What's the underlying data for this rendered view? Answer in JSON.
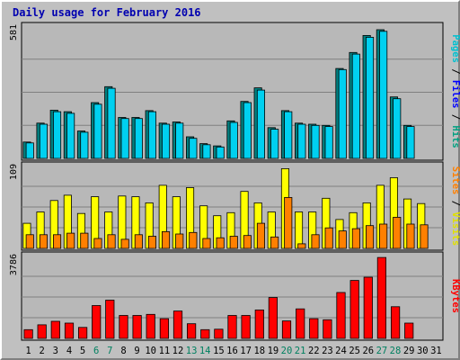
{
  "chart_data": {
    "type": "bar",
    "title": "Daily usage for February 2016",
    "categories": [
      "1",
      "2",
      "3",
      "4",
      "5",
      "6",
      "7",
      "8",
      "9",
      "10",
      "11",
      "12",
      "13",
      "14",
      "15",
      "16",
      "17",
      "18",
      "19",
      "20",
      "21",
      "22",
      "23",
      "24",
      "25",
      "26",
      "27",
      "28",
      "29",
      "30",
      "31"
    ],
    "weekend_days": [
      "6",
      "7",
      "13",
      "14",
      "20",
      "21",
      "27",
      "28"
    ],
    "panels": [
      {
        "id": "pages-files-hits",
        "max_label": "581",
        "ymax": 581,
        "side_labels": [
          {
            "text": "Pages",
            "color": "#00c0d0"
          },
          {
            "text": " / ",
            "color": "#000000"
          },
          {
            "text": "Files",
            "color": "#0000ff"
          },
          {
            "text": " / ",
            "color": "#000000"
          },
          {
            "text": "Hits",
            "color": "#00a080"
          }
        ],
        "series": [
          {
            "name": "Hits",
            "color": "#008080",
            "values": [
              72,
              155,
              212,
              205,
              120,
              245,
              315,
              180,
              180,
              210,
              155,
              160,
              95,
              65,
              55,
              165,
              250,
              310,
              135,
              210,
              155,
              150,
              145,
              395,
              465,
              540,
              565,
              270,
              145,
              null,
              null
            ]
          },
          {
            "name": "Pages",
            "color": "#00d0f0",
            "values": [
              68,
              150,
              205,
              198,
              115,
              238,
              308,
              175,
              175,
              205,
              150,
              155,
              88,
              60,
              50,
              158,
              245,
              300,
              128,
              205,
              150,
              145,
              140,
              390,
              458,
              532,
              558,
              262,
              140,
              null,
              null
            ]
          }
        ]
      },
      {
        "id": "visits-sites",
        "max_label": "109",
        "ymax": 109,
        "side_labels": [
          {
            "text": "Sites",
            "color": "#ff8000"
          },
          {
            "text": " / ",
            "color": "#000000"
          },
          {
            "text": "Visits",
            "color": "#e0e000"
          }
        ],
        "series": [
          {
            "name": "Visits",
            "color": "#ffff00",
            "values": [
              33,
              48,
              63,
              70,
              46,
              68,
              48,
              69,
              68,
              60,
              83,
              68,
              80,
              56,
              43,
              47,
              75,
              60,
              48,
              105,
              48,
              48,
              66,
              38,
              47,
              60,
              83,
              93,
              65,
              59,
              null
            ]
          },
          {
            "name": "Sites",
            "color": "#ff8000",
            "values": [
              18,
              18,
              18,
              20,
              20,
              13,
              18,
              12,
              18,
              16,
              22,
              19,
              21,
              13,
              14,
              16,
              17,
              33,
              15,
              67,
              6,
              18,
              27,
              23,
              26,
              30,
              32,
              41,
              32,
              31,
              null
            ]
          }
        ]
      },
      {
        "id": "kbytes",
        "max_label": "3786",
        "ymax": 3786,
        "side_labels": [
          {
            "text": "KBytes",
            "color": "#ff0000"
          }
        ],
        "series": [
          {
            "name": "KBytes",
            "color": "#ff0000",
            "values": [
              400,
              620,
              780,
              700,
              500,
              1500,
              1750,
              1050,
              1050,
              1100,
              900,
              1250,
              670,
              400,
              420,
              1050,
              1050,
              1300,
              1870,
              800,
              1350,
              900,
              850,
              2100,
              2650,
              2800,
              3700,
              1450,
              700,
              null,
              null
            ]
          }
        ]
      }
    ],
    "xlabel": "",
    "ylabel": "",
    "grid": true,
    "legend": "right (vertical text)"
  }
}
